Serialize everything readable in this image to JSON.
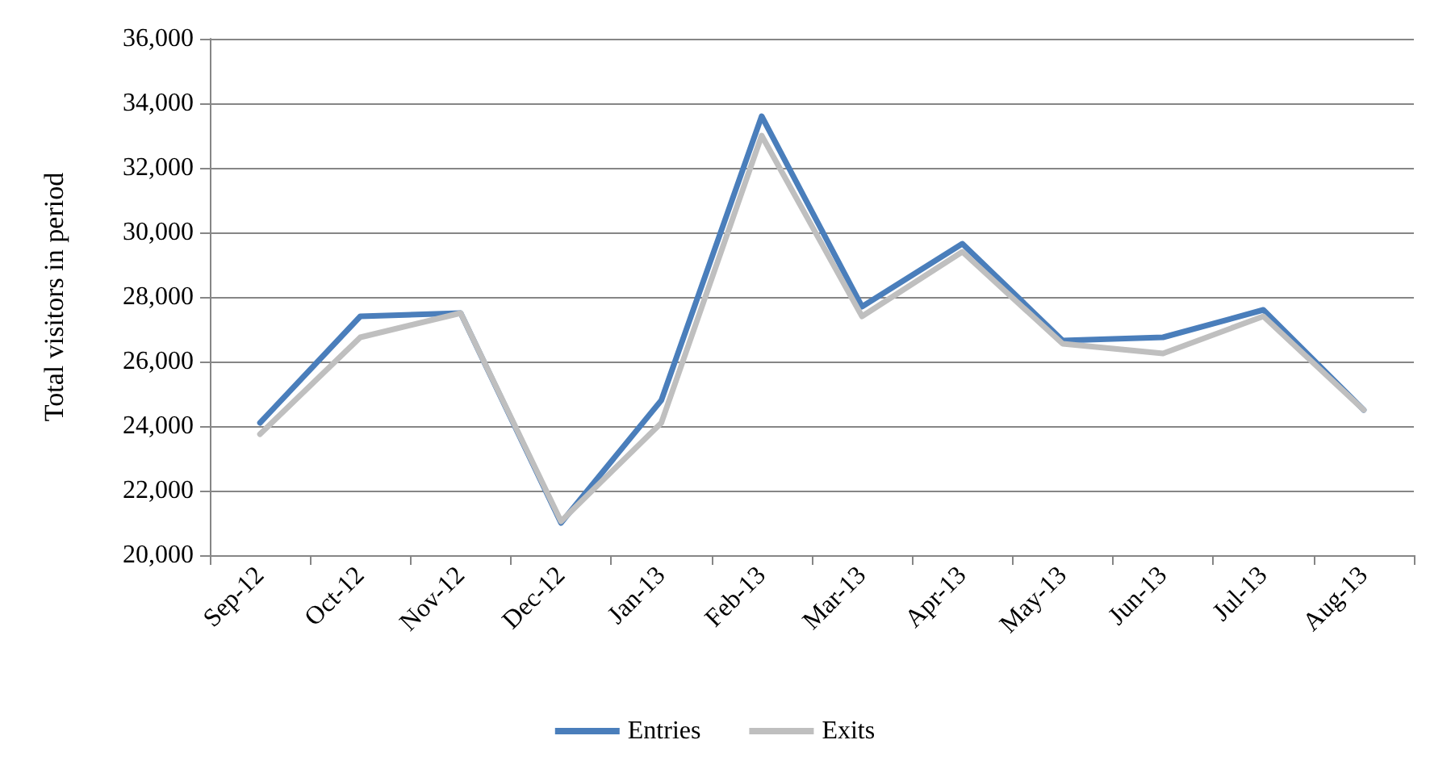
{
  "chart_data": {
    "type": "line",
    "ylabel": "Total visitors in period",
    "categories": [
      "Sep-12",
      "Oct-12",
      "Nov-12",
      "Dec-12",
      "Jan-13",
      "Feb-13",
      "Mar-13",
      "Apr-13",
      "May-13",
      "Jun-13",
      "Jul-13",
      "Aug-13"
    ],
    "series": [
      {
        "name": "Entries",
        "color": "#4a7ebb",
        "values": [
          24100,
          27400,
          27500,
          21000,
          24800,
          33600,
          27700,
          29650,
          26650,
          26750,
          27600,
          24500
        ]
      },
      {
        "name": "Exits",
        "color": "#bfbfbf",
        "values": [
          23750,
          26750,
          27500,
          21050,
          24100,
          33000,
          27400,
          29400,
          26550,
          26250,
          27400,
          24500
        ]
      }
    ],
    "ylim": [
      20000,
      36000
    ],
    "yticks": [
      {
        "value": 20000,
        "label": "20,000"
      },
      {
        "value": 22000,
        "label": "22,000"
      },
      {
        "value": 24000,
        "label": "24,000"
      },
      {
        "value": 26000,
        "label": "26,000"
      },
      {
        "value": 28000,
        "label": "28,000"
      },
      {
        "value": 30000,
        "label": "30,000"
      },
      {
        "value": 32000,
        "label": "32,000"
      },
      {
        "value": 34000,
        "label": "34,000"
      },
      {
        "value": 36000,
        "label": "36,000"
      }
    ],
    "grid": "y",
    "legend": "bottom",
    "marker": "none",
    "line_style": "solid"
  }
}
